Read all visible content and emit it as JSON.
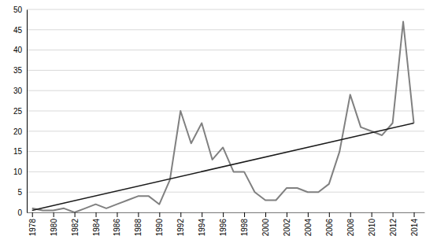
{
  "chart_data": {
    "type": "line",
    "x": [
      1978,
      1979,
      1980,
      1981,
      1982,
      1983,
      1984,
      1985,
      1986,
      1987,
      1988,
      1989,
      1990,
      1991,
      1992,
      1993,
      1994,
      1995,
      1996,
      1997,
      1998,
      1999,
      2000,
      2001,
      2002,
      2003,
      2004,
      2005,
      2006,
      2007,
      2008,
      2009,
      2010,
      2011,
      2012,
      2013,
      2014
    ],
    "series": [
      {
        "color": "#808080",
        "values": [
          1,
          0.5,
          0.5,
          1,
          0,
          1,
          2,
          1,
          2,
          3,
          4,
          4,
          2,
          8,
          25,
          17,
          22,
          13,
          16,
          10,
          10,
          5,
          3,
          3,
          6,
          6,
          5,
          5,
          7,
          15,
          29,
          21,
          20,
          19,
          22,
          47,
          22
        ]
      },
      {
        "color": "#1a1a1a",
        "x": [
          1978,
          2014
        ],
        "values": [
          0.5,
          22.0
        ]
      }
    ],
    "xlim": [
      1977.5,
      2015.0
    ],
    "xticks": [
      1978,
      1980,
      1982,
      1984,
      1986,
      1988,
      1990,
      1992,
      1994,
      1996,
      1998,
      2000,
      2002,
      2004,
      2006,
      2008,
      2010,
      2012,
      2014
    ],
    "ylim": [
      0,
      50
    ],
    "yticks": [
      0,
      5,
      10,
      15,
      20,
      25,
      30,
      35,
      40,
      45,
      50
    ],
    "grid": true
  }
}
